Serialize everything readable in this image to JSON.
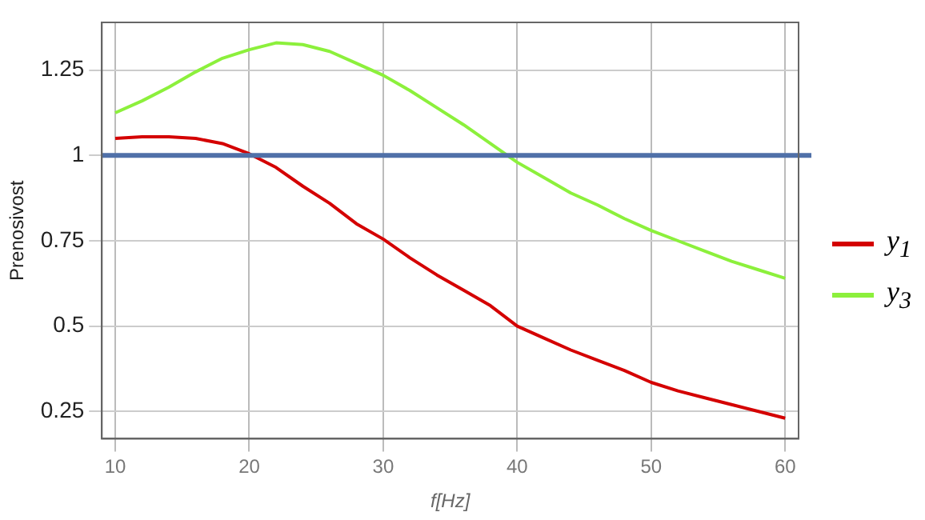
{
  "chart_data": {
    "type": "line",
    "xlabel": "f[Hz]",
    "ylabel": "Prenosivost",
    "x": [
      10,
      12,
      14,
      16,
      18,
      20,
      22,
      24,
      26,
      28,
      30,
      32,
      34,
      36,
      38,
      40,
      42,
      44,
      46,
      48,
      50,
      52,
      54,
      56,
      58,
      60
    ],
    "series": [
      {
        "name": "y$_{1}$",
        "color": "#d40000",
        "values": [
          1.05,
          1.055,
          1.055,
          1.05,
          1.035,
          1.005,
          0.965,
          0.91,
          0.86,
          0.8,
          0.755,
          0.7,
          0.65,
          0.605,
          0.56,
          0.5,
          0.465,
          0.43,
          0.4,
          0.37,
          0.335,
          0.31,
          0.29,
          0.27,
          0.25,
          0.23
        ]
      },
      {
        "name": "y$_{3}$",
        "color": "#8cf03c",
        "values": [
          1.125,
          1.16,
          1.2,
          1.245,
          1.285,
          1.31,
          1.33,
          1.325,
          1.305,
          1.27,
          1.235,
          1.19,
          1.14,
          1.09,
          1.035,
          0.98,
          0.935,
          0.89,
          0.855,
          0.815,
          0.78,
          0.75,
          0.72,
          0.69,
          0.665,
          0.64
        ]
      }
    ],
    "xlim": [
      9,
      61
    ],
    "xticks": [
      10,
      20,
      30,
      40,
      50,
      60
    ],
    "ylim": [
      0.17,
      1.39
    ],
    "yticks": [
      0.25,
      0.5,
      0.75,
      1,
      1.25
    ],
    "ref_lines": [
      {
        "axis": "y",
        "value": 1,
        "color": "#5070a8"
      }
    ],
    "grid": true,
    "legend": "right",
    "marker": "none",
    "line_style": "solid"
  }
}
